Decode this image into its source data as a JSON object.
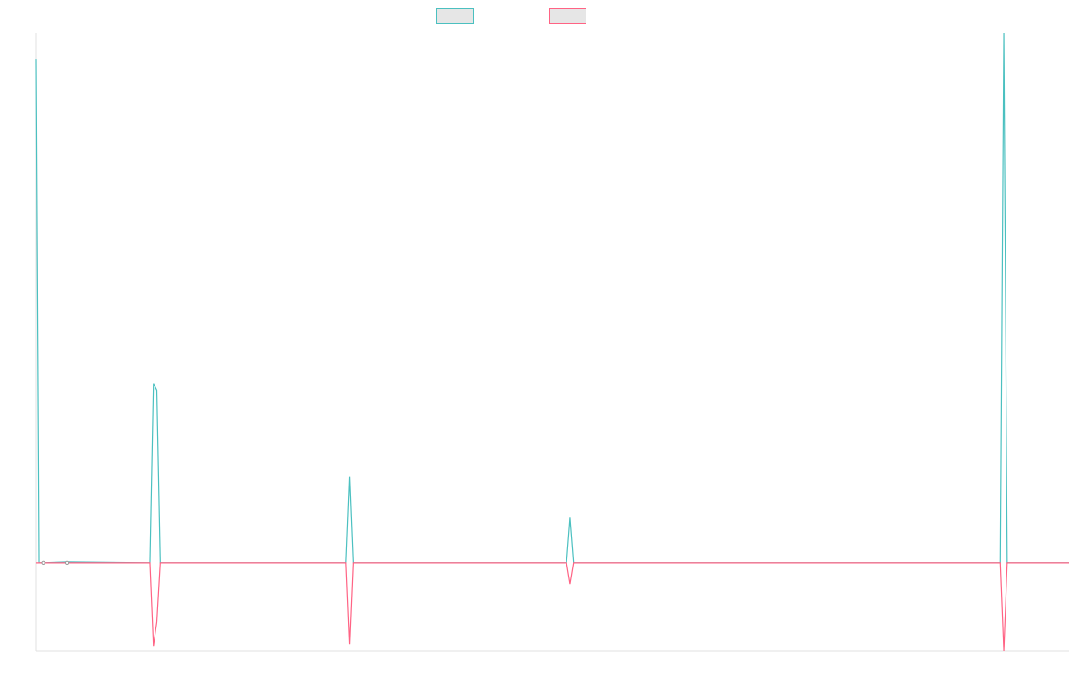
{
  "chart_data": {
    "type": "line",
    "title": "",
    "xlabel": "",
    "ylabel": "",
    "grid": false,
    "legend": {
      "placement": "top-center",
      "entries": [
        "",
        ""
      ]
    },
    "colors": {
      "series_a": "#4bc0c0",
      "series_b": "#ff6384",
      "legend_fill": "#e6e6e6",
      "axis": "#e0e0e0"
    },
    "x_range": [
      0,
      300
    ],
    "ylim": [
      -100,
      600
    ],
    "series": [
      {
        "color": "#4bc0c0",
        "points": [
          [
            0,
            570
          ],
          [
            0.8,
            0
          ],
          [
            2,
            0
          ],
          [
            9,
            1
          ],
          [
            33,
            0
          ],
          [
            34,
            203
          ],
          [
            35,
            195
          ],
          [
            36,
            0
          ],
          [
            90,
            0
          ],
          [
            91,
            97
          ],
          [
            92,
            0
          ],
          [
            154,
            0
          ],
          [
            155,
            51
          ],
          [
            156,
            0
          ],
          [
            280,
            0
          ],
          [
            281,
            600
          ],
          [
            282,
            0
          ],
          [
            300,
            0
          ]
        ]
      },
      {
        "color": "#ff6384",
        "points": [
          [
            0,
            0
          ],
          [
            33,
            0
          ],
          [
            34,
            -94
          ],
          [
            35,
            -67
          ],
          [
            36,
            0
          ],
          [
            90,
            0
          ],
          [
            91,
            -92
          ],
          [
            92,
            0
          ],
          [
            154,
            0
          ],
          [
            155,
            -24
          ],
          [
            156,
            0
          ],
          [
            280,
            0
          ],
          [
            281,
            -100
          ],
          [
            282,
            0
          ],
          [
            300,
            0
          ]
        ]
      }
    ],
    "markers": [
      [
        2,
        0
      ],
      [
        9,
        0
      ]
    ]
  }
}
